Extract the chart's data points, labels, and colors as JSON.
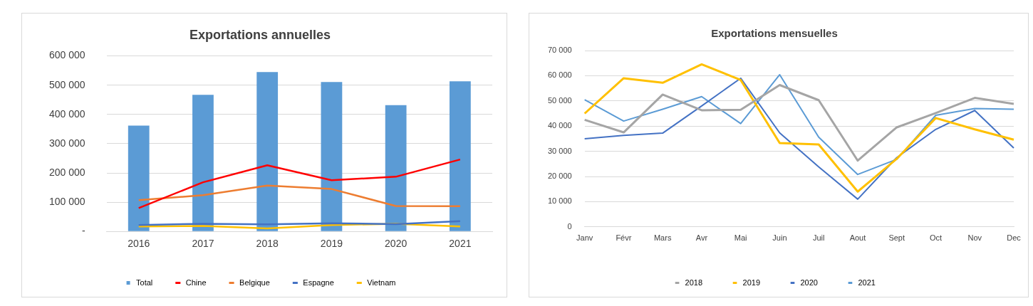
{
  "chart_data": [
    {
      "type": "bar",
      "title": "Exportations annuelles",
      "categories": [
        "2016",
        "2017",
        "2018",
        "2019",
        "2020",
        "2021"
      ],
      "series": [
        {
          "name": "Total",
          "type": "bar",
          "color": "#5b9bd5",
          "values": [
            362000,
            467000,
            545000,
            511000,
            432000,
            513000
          ]
        },
        {
          "name": "Chine",
          "type": "line",
          "color": "#ff0000",
          "values": [
            80000,
            168000,
            226000,
            175000,
            187000,
            246000
          ]
        },
        {
          "name": "Belgique",
          "type": "line",
          "color": "#ed7d31",
          "values": [
            107000,
            124000,
            157000,
            145000,
            87000,
            86000
          ]
        },
        {
          "name": "Espagne",
          "type": "line",
          "color": "#4472c4",
          "values": [
            22000,
            26000,
            24000,
            28000,
            25000,
            35000
          ]
        },
        {
          "name": "Vietnam",
          "type": "line",
          "color": "#ffc000",
          "values": [
            17000,
            19000,
            10000,
            22000,
            26000,
            17000
          ]
        }
      ],
      "ylim": [
        0,
        600000
      ],
      "yticks": [
        {
          "value": 0,
          "label": "-"
        },
        {
          "value": 100000,
          "label": "100 000"
        },
        {
          "value": 200000,
          "label": "200 000"
        },
        {
          "value": 300000,
          "label": "300 000"
        },
        {
          "value": 400000,
          "label": "400 000"
        },
        {
          "value": 500000,
          "label": "500 000"
        },
        {
          "value": 600000,
          "label": "600 000"
        }
      ],
      "grid": "y",
      "legend": "bottom",
      "marker": "none"
    },
    {
      "type": "line",
      "title": "Exportations mensuelles",
      "categories": [
        "Janv",
        "Févr",
        "Mars",
        "Avr",
        "Mai",
        "Juin",
        "Juil",
        "Aout",
        "Sept",
        "Oct",
        "Nov",
        "Dec"
      ],
      "series": [
        {
          "name": "2018",
          "color": "#a5a5a5",
          "values": [
            42500,
            37500,
            52500,
            46300,
            46500,
            56300,
            50300,
            26300,
            39500,
            45200,
            51200,
            48800
          ]
        },
        {
          "name": "2019",
          "color": "#ffc000",
          "values": [
            45000,
            59000,
            57200,
            64500,
            58300,
            33300,
            32700,
            14000,
            27000,
            43200,
            38700,
            34600
          ]
        },
        {
          "name": "2020",
          "color": "#4472c4",
          "values": [
            35000,
            36300,
            37200,
            48000,
            59000,
            37300,
            23800,
            11000,
            27500,
            38700,
            46200,
            31300
          ]
        },
        {
          "name": "2021",
          "color": "#5b9bd5",
          "values": [
            50500,
            42000,
            46700,
            51700,
            41000,
            60400,
            35600,
            20800,
            26800,
            44300,
            47000,
            46700
          ]
        }
      ],
      "ylim": [
        0,
        70000
      ],
      "yticks": [
        0,
        {
          "value": 10000,
          "label": "10 000"
        },
        {
          "value": 20000,
          "label": "20 000"
        },
        {
          "value": 30000,
          "label": "30 000"
        },
        {
          "value": 40000,
          "label": "40 000"
        },
        {
          "value": 50000,
          "label": "50 000"
        },
        {
          "value": 60000,
          "label": "60 000"
        },
        {
          "value": 70000,
          "label": "70 000"
        }
      ],
      "grid": "y",
      "legend": "bottom",
      "marker": "none"
    }
  ]
}
